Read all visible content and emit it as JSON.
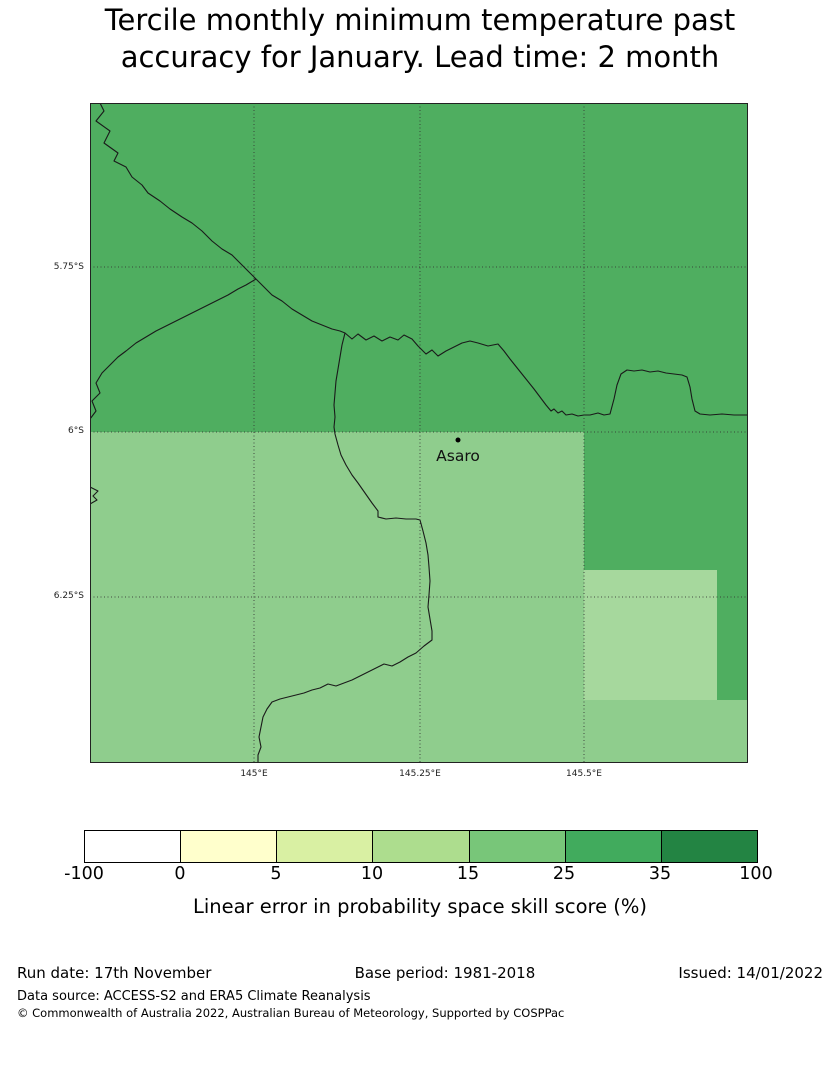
{
  "chart_data": {
    "type": "heatmap",
    "title": "Tercile monthly minimum temperature past accuracy for January. Lead time: 2 month",
    "title_lines": [
      "Tercile monthly minimum temperature past",
      "accuracy for January. Lead time: 2 month"
    ],
    "legend_label": "Linear error in probability space skill score (%)",
    "x_ticks": [
      "145°E",
      "145.25°E",
      "145.5°E"
    ],
    "y_ticks": [
      "5.75°S",
      "6°S",
      "6.25°S"
    ],
    "colorbar": {
      "tick_labels": [
        "-100",
        "0",
        "5",
        "10",
        "15",
        "25",
        "35",
        "100"
      ],
      "segment_colors": [
        "#ffffff",
        "#ffffcc",
        "#d9f0a3",
        "#addd8e",
        "#78c679",
        "#41ab5d",
        "#238443"
      ],
      "units": "%"
    },
    "map_regions": [
      {
        "name": "north-of-6S",
        "value_bin": "25-35",
        "color": "#4fae60"
      },
      {
        "name": "south-of-6S-main",
        "value_bin": "15-25",
        "color": "#8fcd8d"
      },
      {
        "name": "east-of-145.5E-6S-to-6.2S",
        "value_bin": "25-35",
        "color": "#4fae60"
      },
      {
        "name": "east-of-145.5E-6.2S-to-6.4S",
        "value_bin": "10-15",
        "color": "#a6d89d"
      }
    ],
    "marker": {
      "label": "Asaro",
      "lat_approx": "6.01°S",
      "lon_approx": "145.31°E"
    },
    "boundary_line_color": "#1a1a1a",
    "grid": true
  },
  "footer": {
    "run_date": "Run date: 17th November",
    "base_period": "Base period: 1981-2018",
    "issued": "Issued: 14/01/2022",
    "data_source": "Data source: ACCESS-S2 and ERA5 Climate Reanalysis",
    "copyright": "© Commonwealth of Australia 2022, Australian Bureau of Meteorology, Supported by COSPPac"
  }
}
